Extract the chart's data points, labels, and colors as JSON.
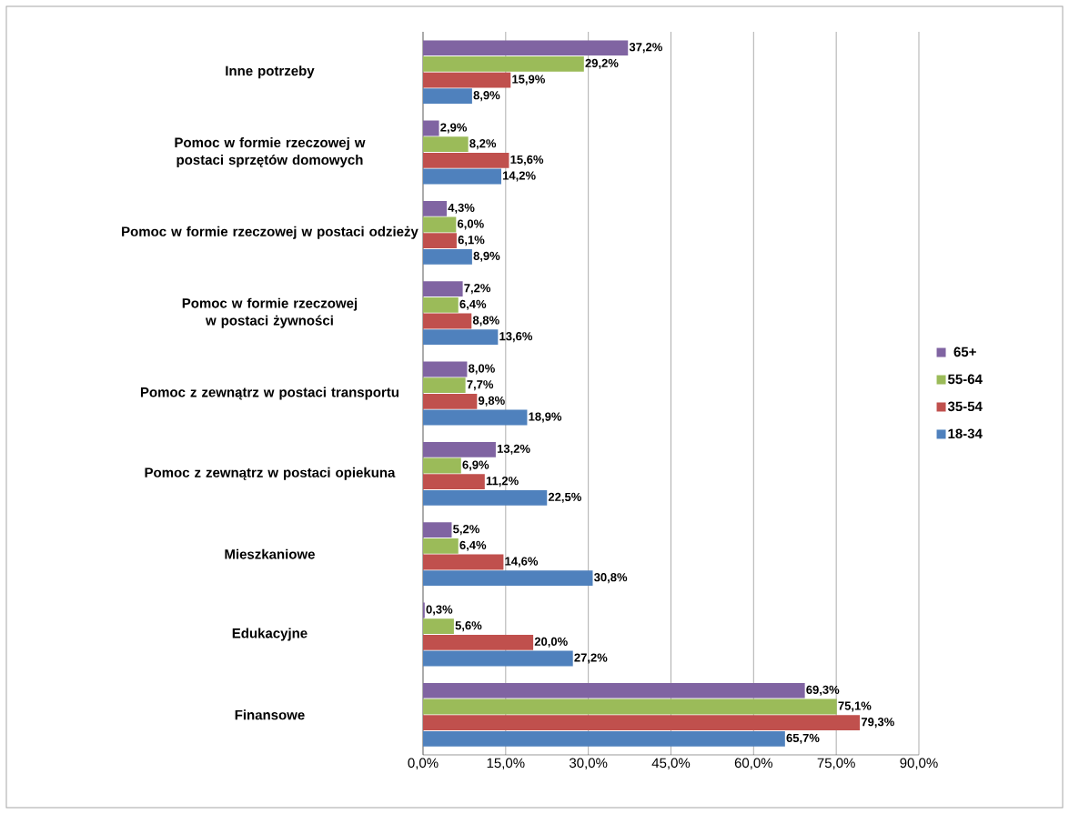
{
  "chart_data": {
    "type": "bar",
    "orientation": "horizontal",
    "categories": [
      "Inne potrzeby",
      "Pomoc w formie rzeczowej w postaci sprzętów domowych",
      "Pomoc w formie rzeczowej w postaci odzieży",
      "Pomoc w formie rzeczowej w postaci żywności",
      "Pomoc z zewnątrz w postaci transportu",
      "Pomoc z zewnątrz w postaci opiekuna",
      "Mieszkaniowe",
      "Edukacyjne",
      "Finansowe"
    ],
    "series": [
      {
        "name": "18-34",
        "color": "#4f81bd",
        "values": [
          8.9,
          14.2,
          8.9,
          13.6,
          18.9,
          22.5,
          30.8,
          27.2,
          65.7
        ],
        "value_labels": [
          "8,9%",
          "14,2%",
          "8,9%",
          "13,6%",
          "18,9%",
          "22,5%",
          "30,8%",
          "27,2%",
          "65,7%"
        ]
      },
      {
        "name": "35-54",
        "color": "#c0504d",
        "values": [
          15.9,
          15.6,
          6.1,
          8.8,
          9.8,
          11.2,
          14.6,
          20.0,
          79.3
        ],
        "value_labels": [
          "15,9%",
          "15,6%",
          "6,1%",
          "8,8%",
          "9,8%",
          "11,2%",
          "14,6%",
          "20,0%",
          "79,3%"
        ]
      },
      {
        "name": "55-64",
        "color": "#9bbb59",
        "values": [
          29.2,
          8.2,
          6.0,
          6.4,
          7.7,
          6.9,
          6.4,
          5.6,
          75.1
        ],
        "value_labels": [
          "29,2%",
          "8,2%",
          "6,0%",
          "6,4%",
          "7,7%",
          "6,9%",
          "6,4%",
          "5,6%",
          "75,1%"
        ]
      },
      {
        "name": "65+",
        "color": "#8064a2",
        "values": [
          37.2,
          2.9,
          4.3,
          7.2,
          8.0,
          13.2,
          5.2,
          0.3,
          69.3
        ],
        "value_labels": [
          "37,2%",
          "2,9%",
          "4,3%",
          "7,2%",
          "8,0%",
          "13,2%",
          "5,2%",
          "0,3%",
          "69,3%"
        ]
      }
    ],
    "xlim": [
      0,
      90
    ],
    "xticks": [
      {
        "value": 0,
        "label": "0,0%"
      },
      {
        "value": 15,
        "label": "15,0%"
      },
      {
        "value": 30,
        "label": "30,0%"
      },
      {
        "value": 45,
        "label": "45,0%"
      },
      {
        "value": 60,
        "label": "60,0%"
      },
      {
        "value": 75,
        "label": "75,0%"
      },
      {
        "value": 90,
        "label": "90,0%"
      }
    ],
    "grid": "x",
    "legend": "right"
  }
}
